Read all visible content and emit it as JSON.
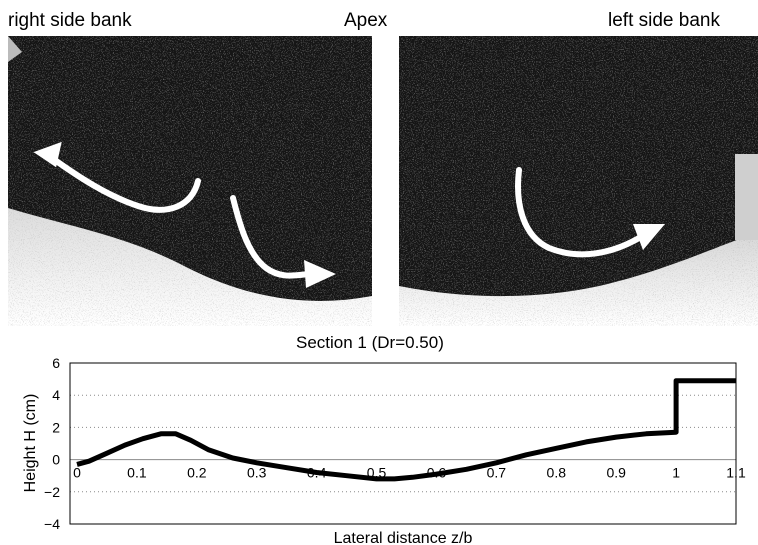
{
  "labels": {
    "right_bank": "right side bank",
    "apex": "Apex",
    "left_bank": "left side bank"
  },
  "photos": {
    "left_panel_icon": "curved-flow-arrows-icon",
    "right_panel_icon": "curved-flow-arrow-icon",
    "arrow_color": "#ffffff"
  },
  "chart_data": {
    "type": "line",
    "title": "Section 1 (Dr=0.50)",
    "xlabel": "Lateral distance z/b",
    "ylabel": "Height H (cm)",
    "xlim": [
      0,
      1.1
    ],
    "ylim": [
      -4,
      6
    ],
    "x_ticks": [
      "0",
      "0.1",
      "0.2",
      "0.3",
      "0.4",
      "0.5",
      "0.6",
      "0.7",
      "0.8",
      "0.9",
      "1",
      "1.1"
    ],
    "y_ticks": [
      "-4",
      "-2",
      "0",
      "2",
      "4",
      "6"
    ],
    "grid": "horizontal dotted",
    "series": [
      {
        "x": [
          0,
          0.02,
          0.05,
          0.08,
          0.11,
          0.14,
          0.165,
          0.19,
          0.22,
          0.26,
          0.3,
          0.35,
          0.4,
          0.45,
          0.5,
          0.53,
          0.56,
          0.6,
          0.65,
          0.7,
          0.75,
          0.8,
          0.85,
          0.9,
          0.95,
          1.0,
          1.0,
          1.1
        ],
        "y": [
          -0.3,
          -0.1,
          0.4,
          0.9,
          1.3,
          1.6,
          1.6,
          1.2,
          0.6,
          0.1,
          -0.2,
          -0.5,
          -0.8,
          -1.0,
          -1.2,
          -1.2,
          -1.1,
          -0.9,
          -0.6,
          -0.2,
          0.3,
          0.7,
          1.1,
          1.4,
          1.6,
          1.7,
          4.9,
          4.9
        ]
      }
    ]
  }
}
